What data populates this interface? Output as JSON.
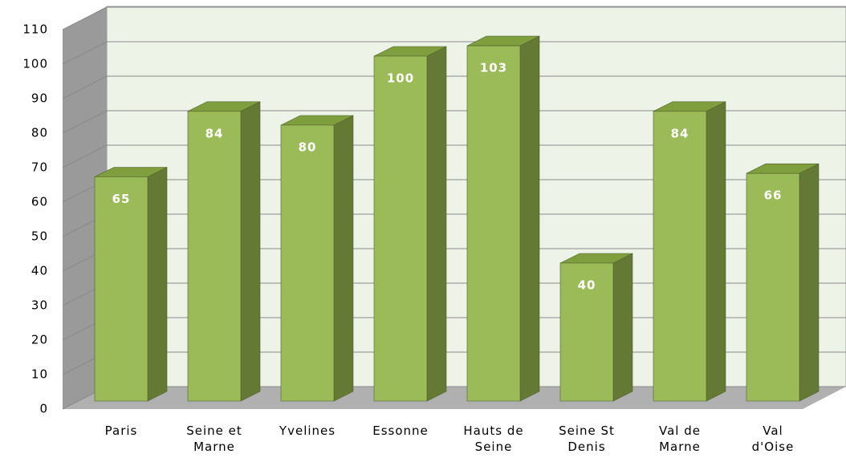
{
  "chart_data": {
    "type": "bar3d",
    "categories": [
      "Paris",
      "Seine et\nMarne",
      "Yvelines",
      "Essonne",
      "Hauts de\nSeine",
      "Seine St\nDenis",
      "Val de\nMarne",
      "Val\nd'Oise"
    ],
    "values": [
      65,
      84,
      80,
      100,
      103,
      40,
      84,
      66
    ],
    "color": "#9bbb59",
    "ylim": [
      0,
      110
    ],
    "yticks": [
      0,
      10,
      20,
      30,
      40,
      50,
      60,
      70,
      80,
      90,
      100,
      110
    ],
    "grid": true
  }
}
